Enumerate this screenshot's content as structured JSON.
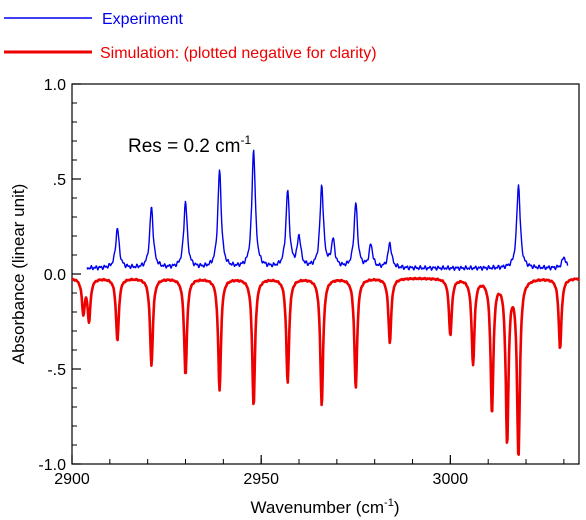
{
  "chart_data": {
    "type": "line",
    "xlabel": "Wavenumber (cm",
    "xlabel_sup": "-1",
    "xlabel_tail": ")",
    "ylabel": "Absorbance (linear unit)",
    "xlim": [
      2900,
      3034
    ],
    "ylim": [
      -1.0,
      1.0
    ],
    "x_ticks": [
      2900,
      2950,
      3000
    ],
    "x_tick_labels": [
      "2900",
      "2950",
      "3000"
    ],
    "y_ticks": [
      1.0,
      0.5,
      0.0,
      -0.5,
      -1.0
    ],
    "y_tick_labels": [
      "1.0",
      ".5",
      "0.0",
      "-.5",
      "-1.0"
    ],
    "grid": false,
    "legend_position": "top-left, above plot",
    "annotation": {
      "text": "Res = 0.2 cm",
      "sup": "-1"
    },
    "series": [
      {
        "name": "Experiment",
        "color": "#0000ee",
        "baseline": 0.03,
        "x_range": [
          2904,
          3031
        ],
        "peaks": [
          {
            "x": 2912,
            "h": 0.21
          },
          {
            "x": 2921,
            "h": 0.32
          },
          {
            "x": 2930,
            "h": 0.35
          },
          {
            "x": 2939,
            "h": 0.51
          },
          {
            "x": 2948,
            "h": 0.62
          },
          {
            "x": 2957,
            "h": 0.4
          },
          {
            "x": 2960,
            "h": 0.16
          },
          {
            "x": 2966,
            "h": 0.43
          },
          {
            "x": 2969,
            "h": 0.14
          },
          {
            "x": 2975,
            "h": 0.34
          },
          {
            "x": 2979,
            "h": 0.12
          },
          {
            "x": 2984,
            "h": 0.13
          },
          {
            "x": 3018,
            "h": 0.44
          },
          {
            "x": 3030,
            "h": 0.06
          }
        ]
      },
      {
        "name": "Simulation: (plotted negative for clarity)",
        "color": "#ee0000",
        "baseline": -0.02,
        "x_range": [
          2900,
          3034
        ],
        "peaks": [
          {
            "x": 2903,
            "h": -0.18
          },
          {
            "x": 2904.5,
            "h": -0.22
          },
          {
            "x": 2912,
            "h": -0.33
          },
          {
            "x": 2921,
            "h": -0.46
          },
          {
            "x": 2930,
            "h": -0.51
          },
          {
            "x": 2939,
            "h": -0.59
          },
          {
            "x": 2948,
            "h": -0.67
          },
          {
            "x": 2957,
            "h": -0.55
          },
          {
            "x": 2966,
            "h": -0.67
          },
          {
            "x": 2975,
            "h": -0.58
          },
          {
            "x": 2984,
            "h": -0.34
          },
          {
            "x": 3000,
            "h": -0.3
          },
          {
            "x": 3006,
            "h": -0.45
          },
          {
            "x": 3011,
            "h": -0.7
          },
          {
            "x": 3015,
            "h": -0.85
          },
          {
            "x": 3018,
            "h": -0.93
          },
          {
            "x": 3029,
            "h": -0.37
          }
        ]
      }
    ]
  }
}
